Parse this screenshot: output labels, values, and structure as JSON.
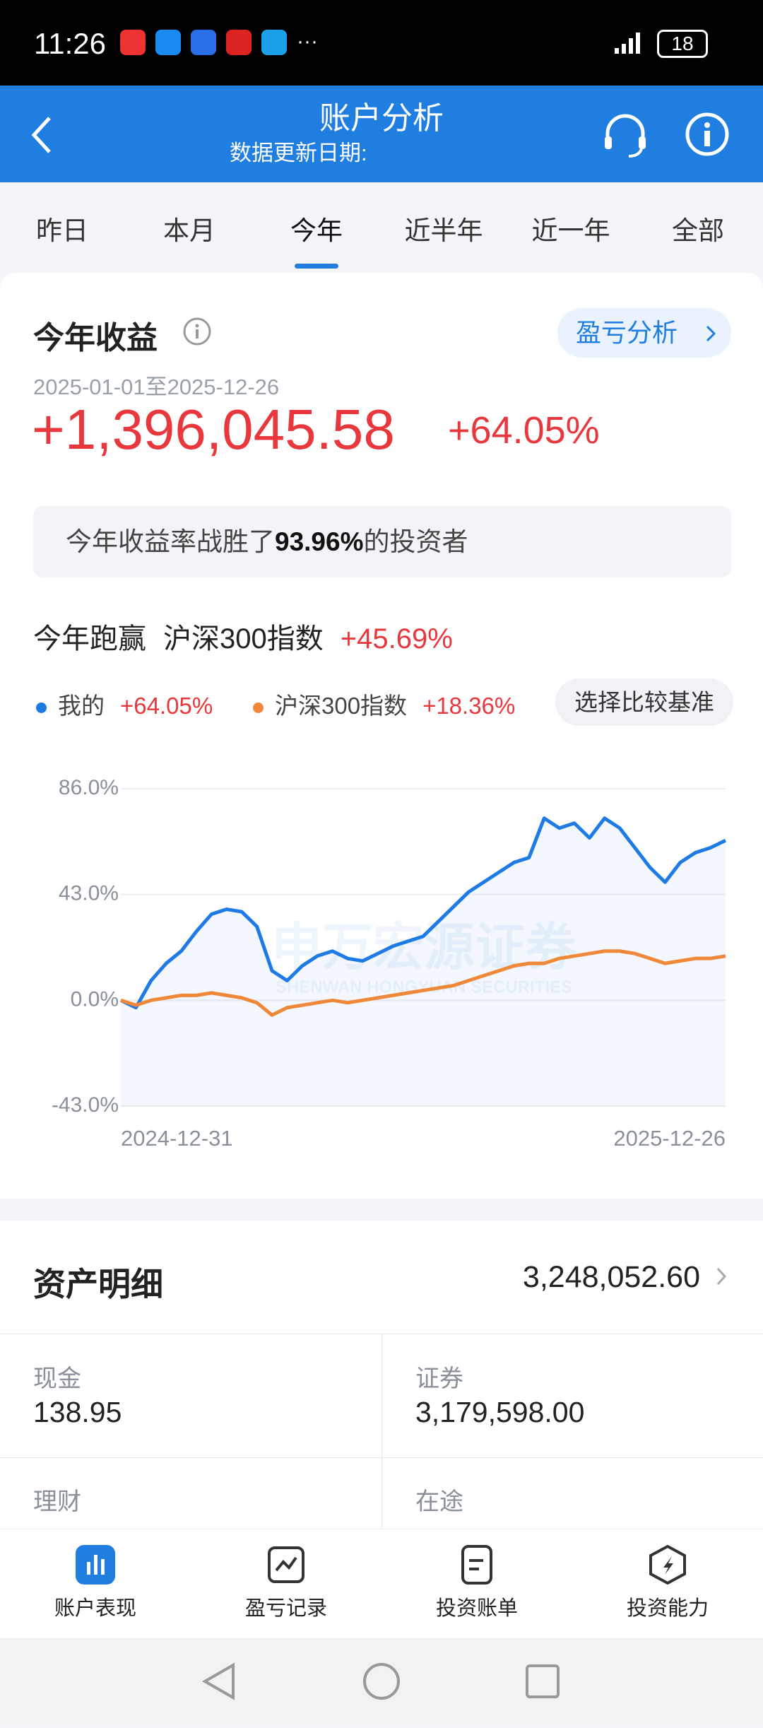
{
  "status_bar": {
    "time": "11:26",
    "battery": "18"
  },
  "header": {
    "title": "账户分析",
    "subtitle": "数据更新日期:"
  },
  "tabs": {
    "items": [
      "昨日",
      "本月",
      "今年",
      "近半年",
      "近一年",
      "全部"
    ],
    "active": 2
  },
  "summary": {
    "title": "今年收益",
    "button": "盈亏分析",
    "date_range": "2025-01-01至2025-12-26",
    "profit": "+1,396,045.58",
    "return": "+64.05%"
  },
  "rank": {
    "before": "今年收益率战胜了",
    "value": "93.96%",
    "after": "的投资者"
  },
  "compare": {
    "label": "今年跑赢",
    "index": "沪深300指数",
    "value": "+45.69%",
    "button": "选择比较基准"
  },
  "chart_data": {
    "type": "line",
    "categories": [
      "2024-12-31",
      null,
      null,
      null,
      null,
      null,
      null,
      null,
      null,
      null,
      null,
      null,
      null,
      null,
      null,
      null,
      null,
      null,
      null,
      null,
      null,
      null,
      null,
      null,
      null,
      null,
      null,
      null,
      null,
      null,
      null,
      null,
      null,
      null,
      null,
      null,
      null,
      null,
      null,
      null,
      "2025-12-26"
    ],
    "series": [
      {
        "name": "我的",
        "legend_value": "+64.05%",
        "color": "#1e7be6",
        "values": [
          0,
          -3,
          8,
          15,
          20,
          28,
          35,
          37,
          36,
          30,
          12,
          8,
          14,
          18,
          20,
          17,
          16,
          19,
          22,
          24,
          26,
          32,
          38,
          44,
          48,
          52,
          56,
          58,
          74,
          70,
          72,
          66,
          74,
          70,
          62,
          54,
          48,
          56,
          60,
          62,
          65
        ]
      },
      {
        "name": "沪深300指数",
        "legend_value": "+18.36%",
        "color": "#f0883a",
        "values": [
          0,
          -2,
          0,
          1,
          2,
          2,
          3,
          2,
          1,
          -1,
          -6,
          -3,
          -2,
          -1,
          0,
          -1,
          0,
          1,
          2,
          3,
          4,
          5,
          6,
          8,
          10,
          12,
          14,
          15,
          15,
          17,
          18,
          19,
          20,
          20,
          19,
          17,
          15,
          16,
          17,
          17,
          18
        ]
      }
    ],
    "ylim": [
      -43,
      86
    ],
    "yticks": [
      {
        "value": -43,
        "label": "-43.0%"
      },
      {
        "value": 0,
        "label": "0.0%"
      },
      {
        "value": 43,
        "label": "43.0%"
      },
      {
        "value": 86,
        "label": "86.0%"
      }
    ],
    "grid": true,
    "watermark": "申万宏源证券",
    "watermark_sub": "SHENWAN HONGYUAN SECURITIES"
  },
  "assets": {
    "title": "资产明细",
    "total": "3,248,052.60",
    "items": [
      {
        "label": "现金",
        "value": "138.95"
      },
      {
        "label": "证券",
        "value": "3,179,598.00"
      },
      {
        "label": "理财"
      },
      {
        "label": "在途"
      }
    ]
  },
  "nav": {
    "items": [
      "账户表现",
      "盈亏记录",
      "投资账单",
      "投资能力"
    ],
    "active": 0
  }
}
